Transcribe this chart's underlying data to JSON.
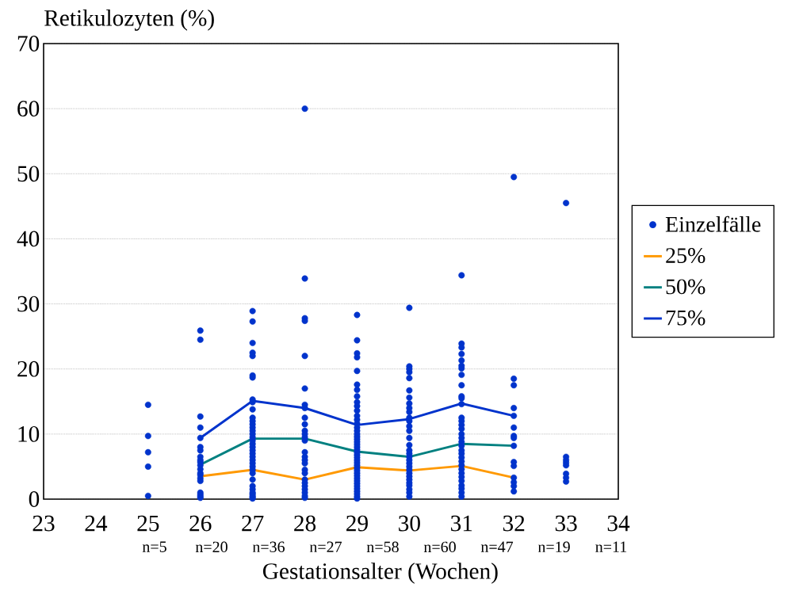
{
  "chart_data": {
    "type": "scatter",
    "xlabel": "Gestationsalter (Wochen)",
    "ylabel": "Retikulozyten (%)",
    "xlim": [
      23,
      34
    ],
    "xticks": [
      23,
      24,
      25,
      26,
      27,
      28,
      29,
      30,
      31,
      32,
      33,
      34
    ],
    "ylim": [
      0,
      70
    ],
    "yticks": [
      0,
      10,
      20,
      30,
      40,
      50,
      60,
      70
    ],
    "grid": "y",
    "legend": "right",
    "series": [
      {
        "name": "Einzelfälle",
        "color": "#0033cc",
        "x": [
          25,
          25,
          25,
          25,
          25,
          26,
          26,
          26,
          26,
          26,
          26,
          26,
          26,
          26,
          26,
          26,
          26,
          26,
          26,
          26,
          26,
          26,
          26,
          26,
          26,
          27,
          27,
          27,
          27,
          27,
          27,
          27,
          27,
          27,
          27,
          27,
          27,
          27,
          27,
          27,
          27,
          27,
          27,
          27,
          27,
          27,
          27,
          27,
          27,
          27,
          27,
          27,
          27,
          27,
          27,
          27,
          27,
          27,
          27,
          27,
          27,
          28,
          28,
          28,
          28,
          28,
          28,
          28,
          28,
          28,
          28,
          28,
          28,
          28,
          28,
          28,
          28,
          28,
          28,
          28,
          28,
          28,
          28,
          28,
          28,
          28,
          28,
          28,
          29,
          29,
          29,
          29,
          29,
          29,
          29,
          29,
          29,
          29,
          29,
          29,
          29,
          29,
          29,
          29,
          29,
          29,
          29,
          29,
          29,
          29,
          29,
          29,
          29,
          29,
          29,
          29,
          29,
          29,
          29,
          29,
          29,
          29,
          29,
          29,
          29,
          29,
          29,
          29,
          29,
          29,
          30,
          30,
          30,
          30,
          30,
          30,
          30,
          30,
          30,
          30,
          30,
          30,
          30,
          30,
          30,
          30,
          30,
          30,
          30,
          30,
          30,
          30,
          30,
          30,
          30,
          30,
          30,
          30,
          30,
          30,
          30,
          31,
          31,
          31,
          31,
          31,
          31,
          31,
          31,
          31,
          31,
          31,
          31,
          31,
          31,
          31,
          31,
          31,
          31,
          31,
          31,
          31,
          31,
          31,
          31,
          31,
          31,
          31,
          31,
          31,
          31,
          31,
          31,
          31,
          32,
          32,
          32,
          32,
          32,
          32,
          32,
          32,
          32,
          32,
          32,
          32,
          32,
          32,
          32,
          33,
          33,
          33,
          33,
          33,
          33,
          33,
          33
        ],
        "values": [
          14.5,
          9.7,
          7.2,
          5.0,
          0.5,
          25.9,
          24.5,
          12.7,
          11.0,
          9.4,
          8.0,
          7.5,
          6.5,
          6.0,
          5.7,
          5.2,
          4.6,
          4.0,
          3.7,
          3.2,
          2.8,
          1.0,
          0.7,
          0.4,
          0.2,
          28.9,
          27.3,
          24.0,
          22.5,
          22.0,
          19.0,
          18.7,
          15.3,
          14.9,
          13.8,
          12.5,
          12.0,
          11.5,
          11.0,
          10.5,
          10.0,
          9.5,
          9.0,
          8.5,
          8.0,
          7.5,
          7.0,
          6.5,
          6.0,
          5.5,
          5.0,
          4.5,
          4.0,
          3.0,
          2.0,
          1.5,
          1.0,
          0.8,
          0.5,
          0.3,
          0.1,
          60.0,
          33.9,
          27.8,
          27.4,
          22.0,
          17.0,
          14.5,
          14.0,
          12.5,
          11.5,
          10.5,
          10.0,
          9.5,
          9.0,
          7.2,
          6.5,
          6.0,
          5.5,
          4.5,
          4.0,
          3.0,
          2.5,
          2.0,
          1.5,
          1.0,
          0.5,
          0.2,
          28.3,
          24.4,
          22.4,
          21.8,
          19.7,
          17.6,
          16.8,
          15.8,
          14.9,
          14.3,
          13.6,
          12.8,
          12.2,
          11.6,
          11.0,
          10.5,
          10.0,
          9.6,
          9.2,
          8.8,
          8.4,
          8.0,
          7.6,
          7.2,
          6.8,
          6.4,
          6.0,
          5.6,
          5.2,
          4.8,
          4.4,
          4.0,
          3.6,
          3.2,
          2.8,
          2.4,
          2.0,
          1.6,
          1.2,
          0.8,
          0.4,
          0.1,
          29.4,
          20.4,
          20.0,
          19.5,
          18.6,
          16.7,
          15.6,
          14.7,
          14.0,
          13.4,
          12.5,
          12.0,
          11.2,
          10.5,
          9.4,
          8.3,
          7.5,
          7.0,
          6.5,
          6.0,
          5.5,
          5.0,
          4.5,
          4.0,
          3.5,
          3.0,
          2.5,
          2.1,
          1.5,
          1.0,
          0.4,
          34.4,
          23.9,
          23.3,
          22.3,
          21.3,
          20.5,
          20.1,
          19.1,
          17.5,
          15.8,
          15.5,
          14.6,
          12.5,
          12.0,
          11.4,
          10.8,
          10.0,
          9.4,
          8.8,
          8.2,
          7.5,
          7.0,
          6.4,
          5.8,
          5.2,
          4.6,
          4.0,
          3.4,
          2.8,
          2.1,
          1.6,
          1.0,
          0.4,
          49.5,
          18.5,
          17.5,
          14.0,
          12.8,
          11.0,
          9.7,
          9.4,
          8.2,
          5.7,
          5.1,
          3.3,
          2.6,
          2.0,
          1.2,
          45.5,
          6.5,
          6.0,
          5.6,
          5.2,
          3.9,
          3.3,
          2.7
        ]
      },
      {
        "name": "25%",
        "type": "line",
        "color": "#ff9900",
        "x": [
          26,
          27,
          28,
          29,
          30,
          31,
          32
        ],
        "values": [
          3.5,
          4.5,
          3.0,
          4.9,
          4.4,
          5.1,
          3.3
        ]
      },
      {
        "name": "50%",
        "type": "line",
        "color": "#008080",
        "x": [
          26,
          27,
          28,
          29,
          30,
          31,
          32
        ],
        "values": [
          5.3,
          9.3,
          9.3,
          7.3,
          6.5,
          8.5,
          8.2
        ]
      },
      {
        "name": "75%",
        "type": "line",
        "color": "#0033cc",
        "x": [
          26,
          27,
          28,
          29,
          30,
          31,
          32
        ],
        "values": [
          9.4,
          15.1,
          14.0,
          11.4,
          12.3,
          14.7,
          12.8
        ]
      }
    ],
    "annotations": [
      "n=5",
      "n=20",
      "n=36",
      "n=27",
      "n=58",
      "n=60",
      "n=47",
      "n=19",
      "n=11"
    ]
  }
}
